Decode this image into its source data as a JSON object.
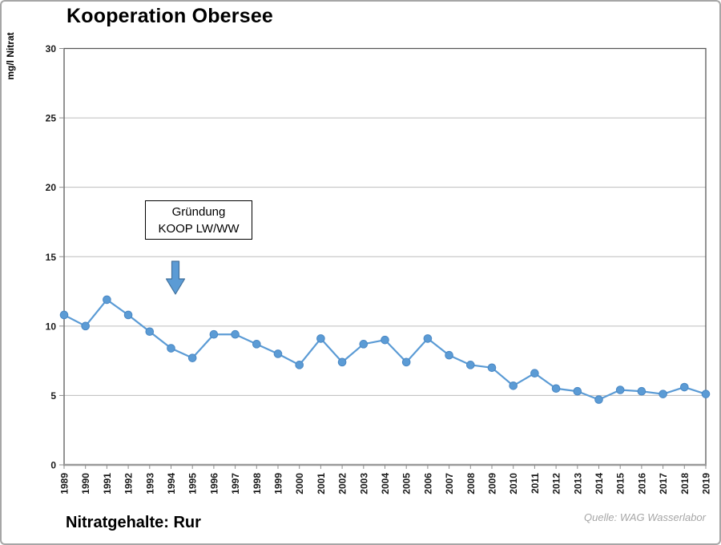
{
  "header": {
    "title": "Kooperation Obersee"
  },
  "footer": {
    "label": "Nitratgehalte: Rur",
    "source": "Quelle: WAG Wasserlabor"
  },
  "annotation": {
    "line1": "Gründung",
    "line2": "KOOP LW/WW"
  },
  "colors": {
    "series": "#5b9bd5",
    "marker_edge": "#4a88c4",
    "arrow_fill": "#5b9bd5",
    "arrow_stroke": "#41719c",
    "grid": "#bdbdbd",
    "frame": "#595959",
    "axis": "#9a9a9a",
    "tick": "#8c8c8c",
    "source_text": "#a6a6a6"
  },
  "chart_data": {
    "type": "line",
    "title": "Kooperation Obersee",
    "ylabel": "mg/l Nitrat",
    "xlabel": "",
    "categories": [
      "1989",
      "1990",
      "1991",
      "1992",
      "1993",
      "1994",
      "1995",
      "1996",
      "1997",
      "1998",
      "1999",
      "2000",
      "2001",
      "2002",
      "2003",
      "2004",
      "2005",
      "2006",
      "2007",
      "2008",
      "2009",
      "2010",
      "2011",
      "2012",
      "2013",
      "2014",
      "2015",
      "2016",
      "2017",
      "2018",
      "2019"
    ],
    "values": [
      10.8,
      10.0,
      11.9,
      10.8,
      9.6,
      8.4,
      7.7,
      9.4,
      9.4,
      8.7,
      8.0,
      7.2,
      9.1,
      7.4,
      8.7,
      9.0,
      7.4,
      9.1,
      7.9,
      7.2,
      7.0,
      5.7,
      6.6,
      5.5,
      5.3,
      4.7,
      5.4,
      5.3,
      5.1,
      5.6,
      5.1
    ],
    "ylim": [
      0,
      30
    ],
    "yticks": [
      0,
      5,
      10,
      15,
      20,
      25,
      30
    ],
    "grid": "horizontal",
    "legend": "none",
    "annotation": {
      "text": "Gründung KOOP LW/WW",
      "arrow_between_years": "1994/1995",
      "arrow_direction": "down"
    }
  }
}
